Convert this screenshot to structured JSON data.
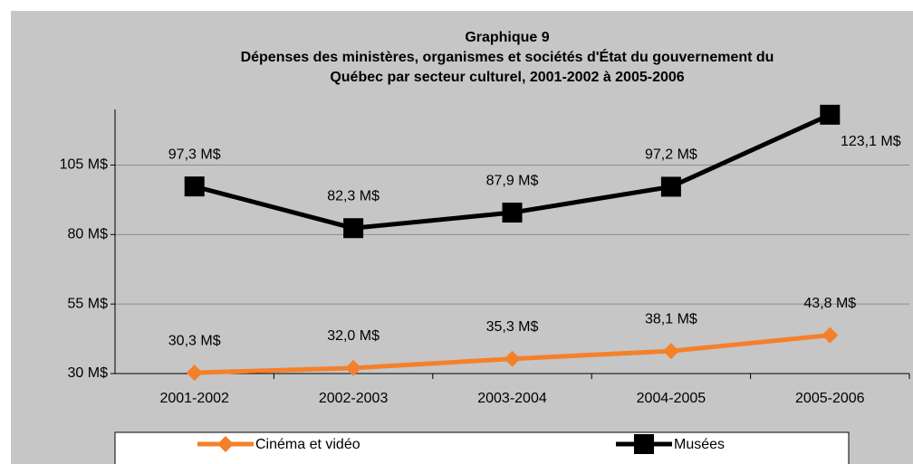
{
  "chart_data": {
    "type": "line",
    "title": "Graphique 9",
    "subtitle": [
      "Dépenses des ministères, organismes et sociétés d'État du gouvernement du",
      "Québec par secteur culturel, 2001-2002 à 2005-2006"
    ],
    "categories": [
      "2001-2002",
      "2002-2003",
      "2003-2004",
      "2004-2005",
      "2005-2006"
    ],
    "series": [
      {
        "name": "Cinéma et vidéo",
        "color": "#f5802a",
        "marker": "diamond",
        "values": [
          30.3,
          32.0,
          35.3,
          38.1,
          43.8
        ],
        "value_labels": [
          "30,3 M$",
          "32,0 M$",
          "35,3 M$",
          "38,1 M$",
          "43,8 M$"
        ]
      },
      {
        "name": "Musées",
        "color": "#000000",
        "marker": "square",
        "values": [
          97.3,
          82.3,
          87.9,
          97.2,
          123.1
        ],
        "value_labels": [
          "97,3 M$",
          "82,3 M$",
          "87,9 M$",
          "97,2 M$",
          "123,1 M$"
        ]
      }
    ],
    "ylim": [
      30,
      125
    ],
    "yticks": [
      {
        "value": 30,
        "label": "30 M$"
      },
      {
        "value": 55,
        "label": "55 M$"
      },
      {
        "value": 80,
        "label": "80 M$"
      },
      {
        "value": 105,
        "label": "105 M$"
      }
    ],
    "grid": true,
    "legend": "bottom"
  }
}
